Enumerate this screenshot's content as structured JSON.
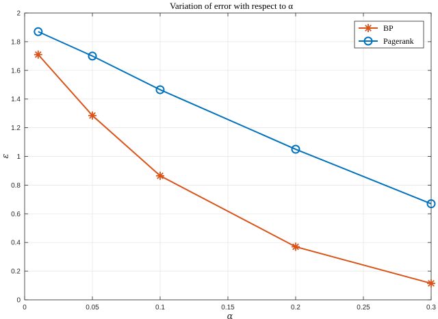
{
  "chart_data": {
    "type": "line",
    "title": "Variation of error with respect to α",
    "xlabel": "α",
    "ylabel": "ε",
    "xlim": [
      0,
      0.3
    ],
    "ylim": [
      0,
      2
    ],
    "xticks": [
      0,
      0.05,
      0.1,
      0.15,
      0.2,
      0.25,
      0.3
    ],
    "xtick_labels": [
      "0",
      "0.05",
      "0.1",
      "0.15",
      "0.2",
      "0.25",
      "0.3"
    ],
    "yticks": [
      0,
      0.2,
      0.4,
      0.6,
      0.8,
      1,
      1.2,
      1.4,
      1.6,
      1.8,
      2
    ],
    "ytick_labels": [
      "0",
      "0.2",
      "0.4",
      "0.6",
      "0.8",
      "1",
      "1.2",
      "1.4",
      "1.6",
      "1.8",
      "2"
    ],
    "grid": true,
    "legend_position": "top-right",
    "series": [
      {
        "name": "BP",
        "color": "#D95319",
        "marker": "asterisk",
        "x": [
          0.01,
          0.05,
          0.1,
          0.2,
          0.3
        ],
        "y": [
          1.71,
          1.285,
          0.865,
          0.37,
          0.115
        ]
      },
      {
        "name": "Pagerank",
        "color": "#0072BD",
        "marker": "circle",
        "x": [
          0.01,
          0.05,
          0.1,
          0.2,
          0.3
        ],
        "y": [
          1.87,
          1.7,
          1.465,
          1.05,
          0.67
        ]
      }
    ]
  }
}
